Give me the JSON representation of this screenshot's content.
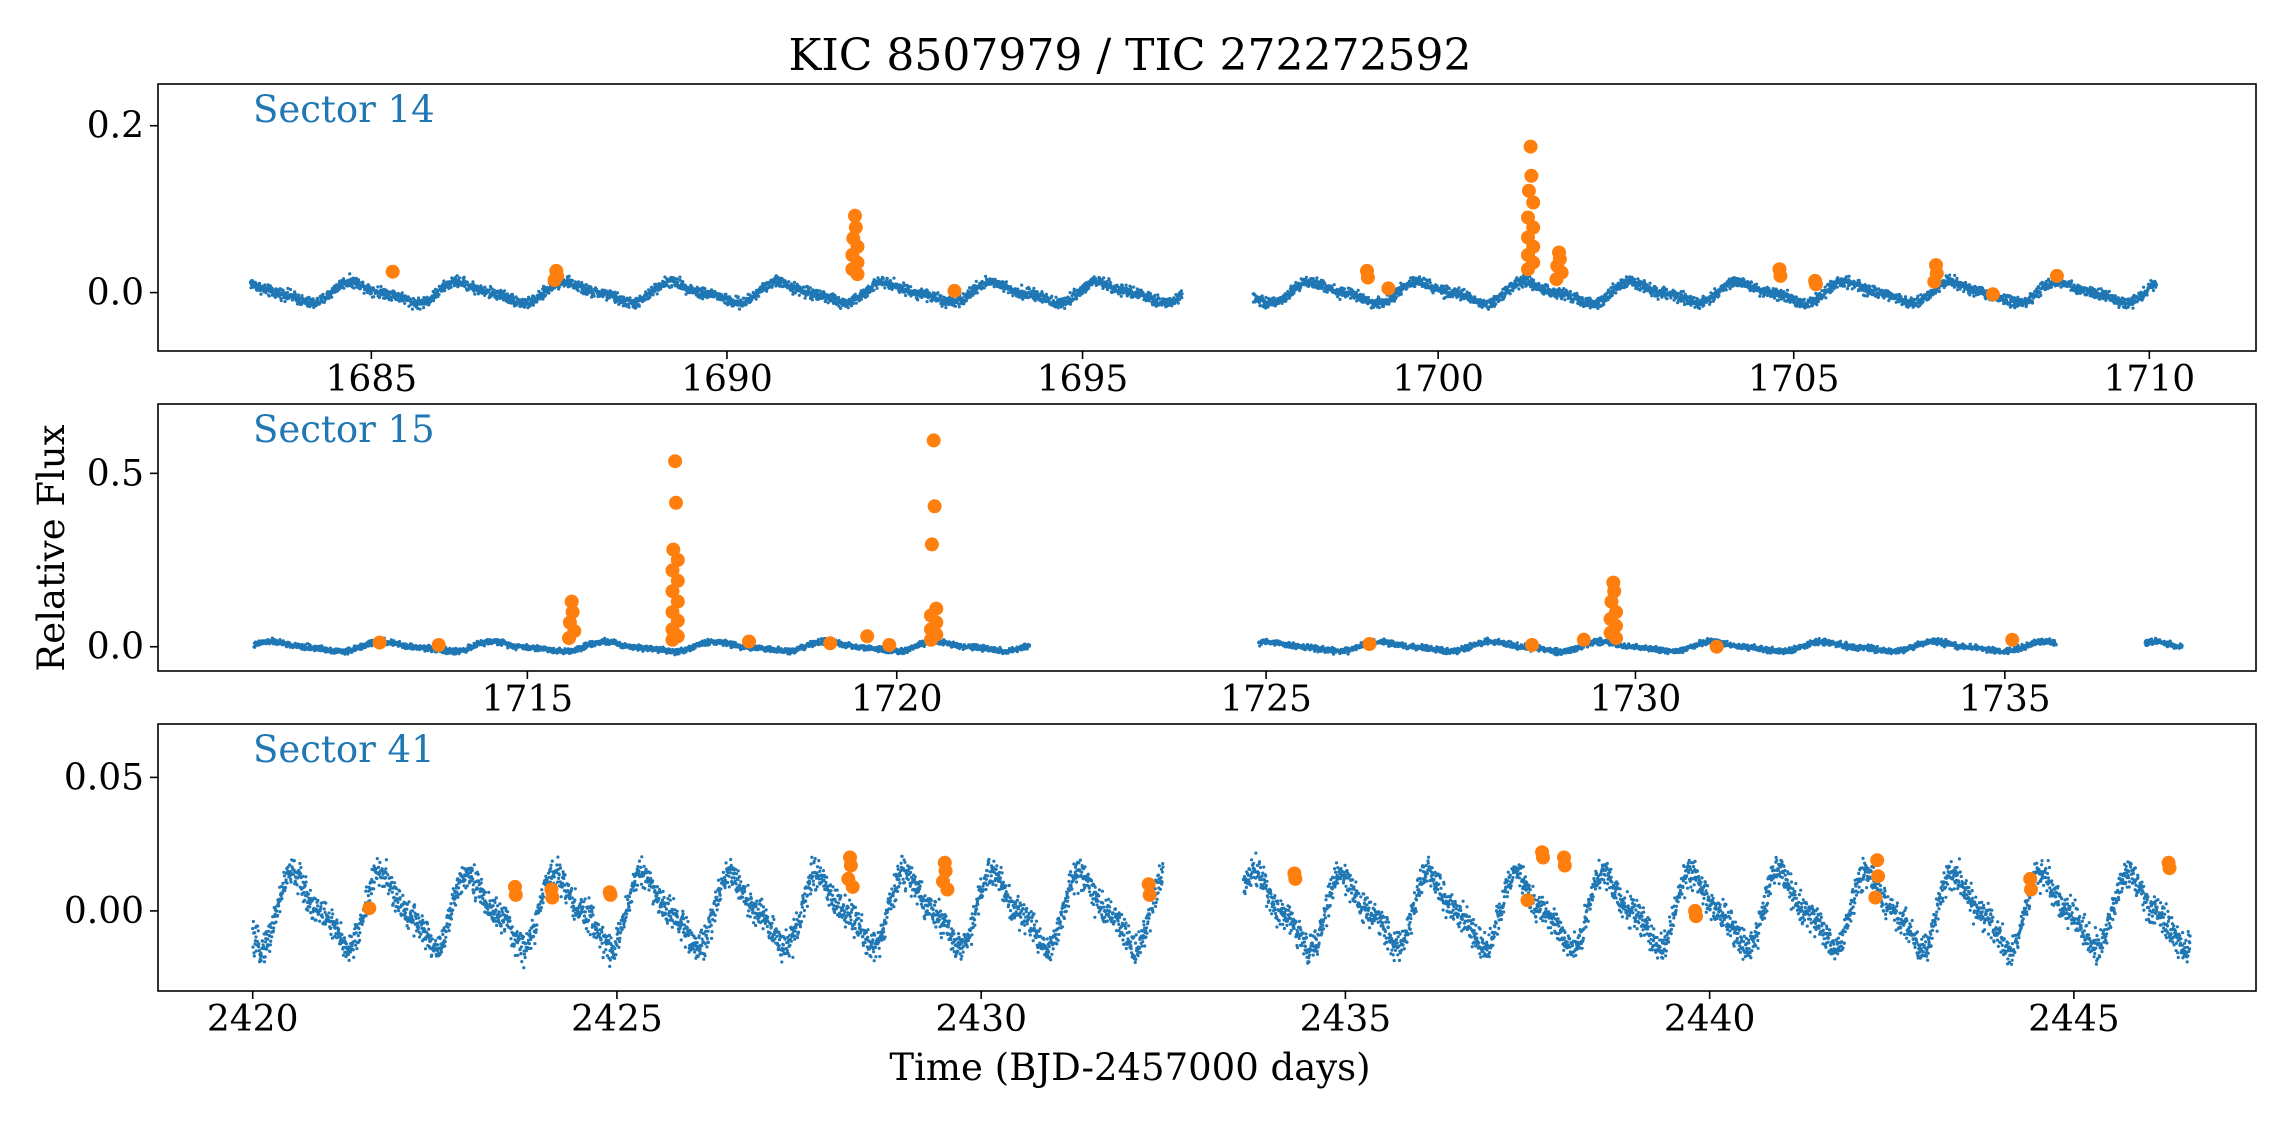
{
  "figure": {
    "title": "KIC 8507979 / TIC 272272592",
    "xlabel": "Time (BJD-2457000 days)",
    "ylabel": "Relative Flux"
  },
  "colors": {
    "quiescent": "#1f77b4",
    "flare": "#ff7f0e",
    "sector_label": "#1f77b4"
  },
  "chart_data": [
    {
      "type": "scatter",
      "panel": "sector-14",
      "label": "Sector 14",
      "xlim": [
        1682.0,
        1711.5
      ],
      "ylim": [
        -0.07,
        0.25
      ],
      "xticks": [
        1685,
        1690,
        1695,
        1700,
        1705,
        1710
      ],
      "yticks": [
        0.0,
        0.2
      ],
      "ytick_labels": [
        "0.0",
        "0.2"
      ],
      "segments": [
        [
          1683.3,
          1696.4
        ],
        [
          1697.4,
          1710.1
        ]
      ],
      "variability": {
        "amplitude": 0.011,
        "period_days": 1.5,
        "phase": 0.3,
        "noise": 0.004
      },
      "flares": [
        {
          "t": 1685.3,
          "y": [
            0.025
          ]
        },
        {
          "t": 1687.6,
          "y": [
            0.026,
            0.02,
            0.015
          ]
        },
        {
          "t": 1691.8,
          "y": [
            0.092,
            0.078,
            0.065,
            0.055,
            0.045,
            0.036,
            0.028,
            0.022
          ]
        },
        {
          "t": 1693.2,
          "y": [
            0.002
          ]
        },
        {
          "t": 1699.0,
          "y": [
            0.026,
            0.018
          ]
        },
        {
          "t": 1699.3,
          "y": [
            0.005
          ]
        },
        {
          "t": 1701.3,
          "y": [
            0.175,
            0.14,
            0.122,
            0.108,
            0.09,
            0.078,
            0.066,
            0.055,
            0.045,
            0.036,
            0.028
          ]
        },
        {
          "t": 1701.7,
          "y": [
            0.048,
            0.04,
            0.032,
            0.024,
            0.016
          ]
        },
        {
          "t": 1704.8,
          "y": [
            0.028,
            0.02
          ]
        },
        {
          "t": 1705.3,
          "y": [
            0.014,
            0.01
          ]
        },
        {
          "t": 1707.0,
          "y": [
            0.033,
            0.023,
            0.013
          ]
        },
        {
          "t": 1707.8,
          "y": [
            -0.002
          ]
        },
        {
          "t": 1708.7,
          "y": [
            0.02
          ]
        }
      ]
    },
    {
      "type": "scatter",
      "panel": "sector-15",
      "label": "Sector 15",
      "xlim": [
        1710.0,
        1738.4
      ],
      "ylim": [
        -0.07,
        0.7
      ],
      "xticks": [
        1715,
        1720,
        1725,
        1730,
        1735
      ],
      "yticks": [
        0.0,
        0.5
      ],
      "ytick_labels": [
        "0.0",
        "0.5"
      ],
      "segments": [
        [
          1711.3,
          1721.8
        ],
        [
          1724.9,
          1735.7
        ],
        [
          1736.9,
          1737.4
        ]
      ],
      "variability": {
        "amplitude": 0.012,
        "period_days": 1.5,
        "phase": 1.1,
        "noise": 0.005
      },
      "flares": [
        {
          "t": 1713.0,
          "y": [
            0.012
          ]
        },
        {
          "t": 1713.8,
          "y": [
            0.005
          ]
        },
        {
          "t": 1715.6,
          "y": [
            0.13,
            0.1,
            0.07,
            0.045,
            0.025
          ]
        },
        {
          "t": 1717.0,
          "y": [
            0.535,
            0.415,
            0.28,
            0.25,
            0.22,
            0.19,
            0.16,
            0.13,
            0.1,
            0.075,
            0.05,
            0.03,
            0.02
          ]
        },
        {
          "t": 1718.0,
          "y": [
            0.015
          ]
        },
        {
          "t": 1719.1,
          "y": [
            0.01
          ]
        },
        {
          "t": 1719.6,
          "y": [
            0.03
          ]
        },
        {
          "t": 1719.9,
          "y": [
            0.005
          ]
        },
        {
          "t": 1720.5,
          "y": [
            0.595,
            0.405,
            0.295,
            0.11,
            0.09,
            0.07,
            0.05,
            0.035,
            0.02
          ]
        },
        {
          "t": 1726.4,
          "y": [
            0.008
          ]
        },
        {
          "t": 1728.6,
          "y": [
            0.005
          ]
        },
        {
          "t": 1729.3,
          "y": [
            0.02
          ]
        },
        {
          "t": 1729.7,
          "y": [
            0.185,
            0.16,
            0.13,
            0.1,
            0.08,
            0.06,
            0.04,
            0.025
          ]
        },
        {
          "t": 1731.1,
          "y": [
            0.0
          ]
        },
        {
          "t": 1735.1,
          "y": [
            0.02
          ]
        }
      ]
    },
    {
      "type": "scatter",
      "panel": "sector-41",
      "label": "Sector 41",
      "xlim": [
        2418.7,
        2447.5
      ],
      "ylim": [
        -0.03,
        0.07
      ],
      "xticks": [
        2420,
        2425,
        2430,
        2435,
        2440,
        2445
      ],
      "yticks": [
        0.0,
        0.05
      ],
      "ytick_labels": [
        "0.00",
        "0.05"
      ],
      "segments": [
        [
          2420.0,
          2432.5
        ],
        [
          2433.6,
          2446.6
        ]
      ],
      "variability": {
        "amplitude": 0.012,
        "period_days": 1.2,
        "phase": 0.4,
        "noise": 0.0035
      },
      "flares": [
        {
          "t": 2421.6,
          "y": [
            0.001
          ]
        },
        {
          "t": 2423.6,
          "y": [
            0.009,
            0.006
          ]
        },
        {
          "t": 2424.1,
          "y": [
            0.008,
            0.005
          ]
        },
        {
          "t": 2424.9,
          "y": [
            0.007,
            0.006
          ]
        },
        {
          "t": 2428.2,
          "y": [
            0.02,
            0.017,
            0.012,
            0.009
          ]
        },
        {
          "t": 2429.5,
          "y": [
            0.018,
            0.015,
            0.011,
            0.008
          ]
        },
        {
          "t": 2432.3,
          "y": [
            0.01,
            0.006
          ]
        },
        {
          "t": 2434.3,
          "y": [
            0.014,
            0.012
          ]
        },
        {
          "t": 2437.5,
          "y": [
            0.004
          ]
        },
        {
          "t": 2437.7,
          "y": [
            0.022,
            0.02
          ]
        },
        {
          "t": 2438.0,
          "y": [
            0.02,
            0.017
          ]
        },
        {
          "t": 2439.8,
          "y": [
            0.0,
            -0.002
          ]
        },
        {
          "t": 2442.3,
          "y": [
            0.019,
            0.013,
            0.005
          ]
        },
        {
          "t": 2444.4,
          "y": [
            0.012,
            0.008
          ]
        },
        {
          "t": 2446.3,
          "y": [
            0.018,
            0.016
          ]
        }
      ]
    }
  ]
}
